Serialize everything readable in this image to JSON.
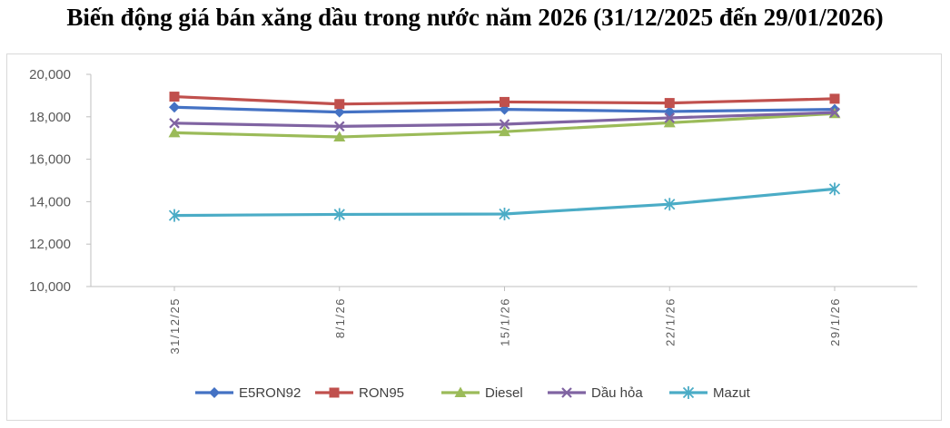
{
  "chart_data": {
    "type": "line",
    "title": "Biến động giá bán xăng dầu trong nước năm 2026 (31/12/2025 đến 29/01/2026)",
    "categories": [
      "31/12/25",
      "8/1/26",
      "15/1/26",
      "22/1/26",
      "29/1/26"
    ],
    "ylim": [
      10000,
      20000
    ],
    "yticks": [
      "10,000",
      "12,000",
      "14,000",
      "16,000",
      "18,000",
      "20,000"
    ],
    "grid": false,
    "legend": "bottom",
    "series": [
      {
        "name": "E5RON92",
        "color": "#4472c4",
        "marker": "diamond",
        "values": [
          18450,
          18220,
          18350,
          18250,
          18350
        ]
      },
      {
        "name": "RON95",
        "color": "#c0504d",
        "marker": "square",
        "values": [
          18950,
          18600,
          18700,
          18650,
          18850
        ]
      },
      {
        "name": "Diesel",
        "color": "#9bbb59",
        "marker": "triangle",
        "values": [
          17250,
          17050,
          17300,
          17720,
          18150
        ]
      },
      {
        "name": "Dầu hỏa",
        "color": "#8064a2",
        "marker": "x",
        "values": [
          17700,
          17550,
          17650,
          17950,
          18200
        ]
      },
      {
        "name": "Mazut",
        "color": "#4bacc6",
        "marker": "star",
        "values": [
          13350,
          13400,
          13420,
          13880,
          14600
        ]
      }
    ]
  }
}
